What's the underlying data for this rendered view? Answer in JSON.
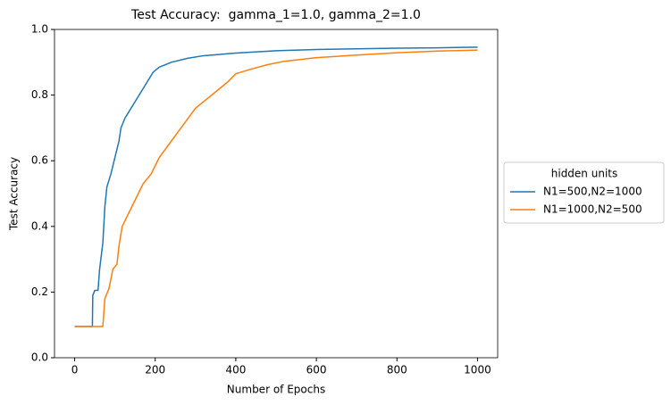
{
  "chart_data": {
    "type": "line",
    "title": "Test Accuracy:  gamma_1=1.0, gamma_2=1.0",
    "x_label": "Number of Epochs",
    "y_label": "Test Accuracy",
    "legend_title": "hidden units",
    "legend_position": "center right outside",
    "xlim": [
      -50,
      1050
    ],
    "ylim": [
      0,
      1
    ],
    "xticks": [
      0,
      200,
      400,
      600,
      800,
      1000
    ],
    "yticks": [
      {
        "value": 0,
        "label": "0.0"
      },
      {
        "value": 0.2,
        "label": "0.2"
      },
      {
        "value": 0.4,
        "label": "0.4"
      },
      {
        "value": 0.6,
        "label": "0.6"
      },
      {
        "value": 0.8,
        "label": "0.8"
      },
      {
        "value": 1,
        "label": "1.0"
      }
    ],
    "series": [
      {
        "name": "N1=500,N2=1000",
        "color": "#1f77b4",
        "x": [
          0,
          44,
          45,
          50,
          58,
          62,
          70,
          75,
          80,
          90,
          100,
          110,
          115,
          125,
          140,
          160,
          180,
          195,
          210,
          240,
          280,
          320,
          400,
          500,
          600,
          700,
          800,
          900,
          1000
        ],
        "values": [
          0.095,
          0.095,
          0.19,
          0.205,
          0.205,
          0.27,
          0.35,
          0.46,
          0.52,
          0.56,
          0.61,
          0.66,
          0.7,
          0.73,
          0.76,
          0.8,
          0.84,
          0.87,
          0.885,
          0.9,
          0.912,
          0.92,
          0.928,
          0.935,
          0.939,
          0.941,
          0.943,
          0.944,
          0.946
        ]
      },
      {
        "name": "N1=1000,N2=500",
        "color": "#ff7f0e",
        "x": [
          0,
          70,
          75,
          85,
          95,
          105,
          110,
          118,
          130,
          150,
          170,
          190,
          210,
          240,
          270,
          300,
          330,
          360,
          380,
          400,
          440,
          480,
          520,
          600,
          700,
          800,
          900,
          1000
        ],
        "values": [
          0.095,
          0.095,
          0.18,
          0.21,
          0.27,
          0.285,
          0.34,
          0.4,
          0.43,
          0.48,
          0.53,
          0.56,
          0.61,
          0.66,
          0.71,
          0.76,
          0.79,
          0.82,
          0.84,
          0.865,
          0.88,
          0.893,
          0.903,
          0.914,
          0.922,
          0.929,
          0.934,
          0.937
        ]
      }
    ]
  }
}
